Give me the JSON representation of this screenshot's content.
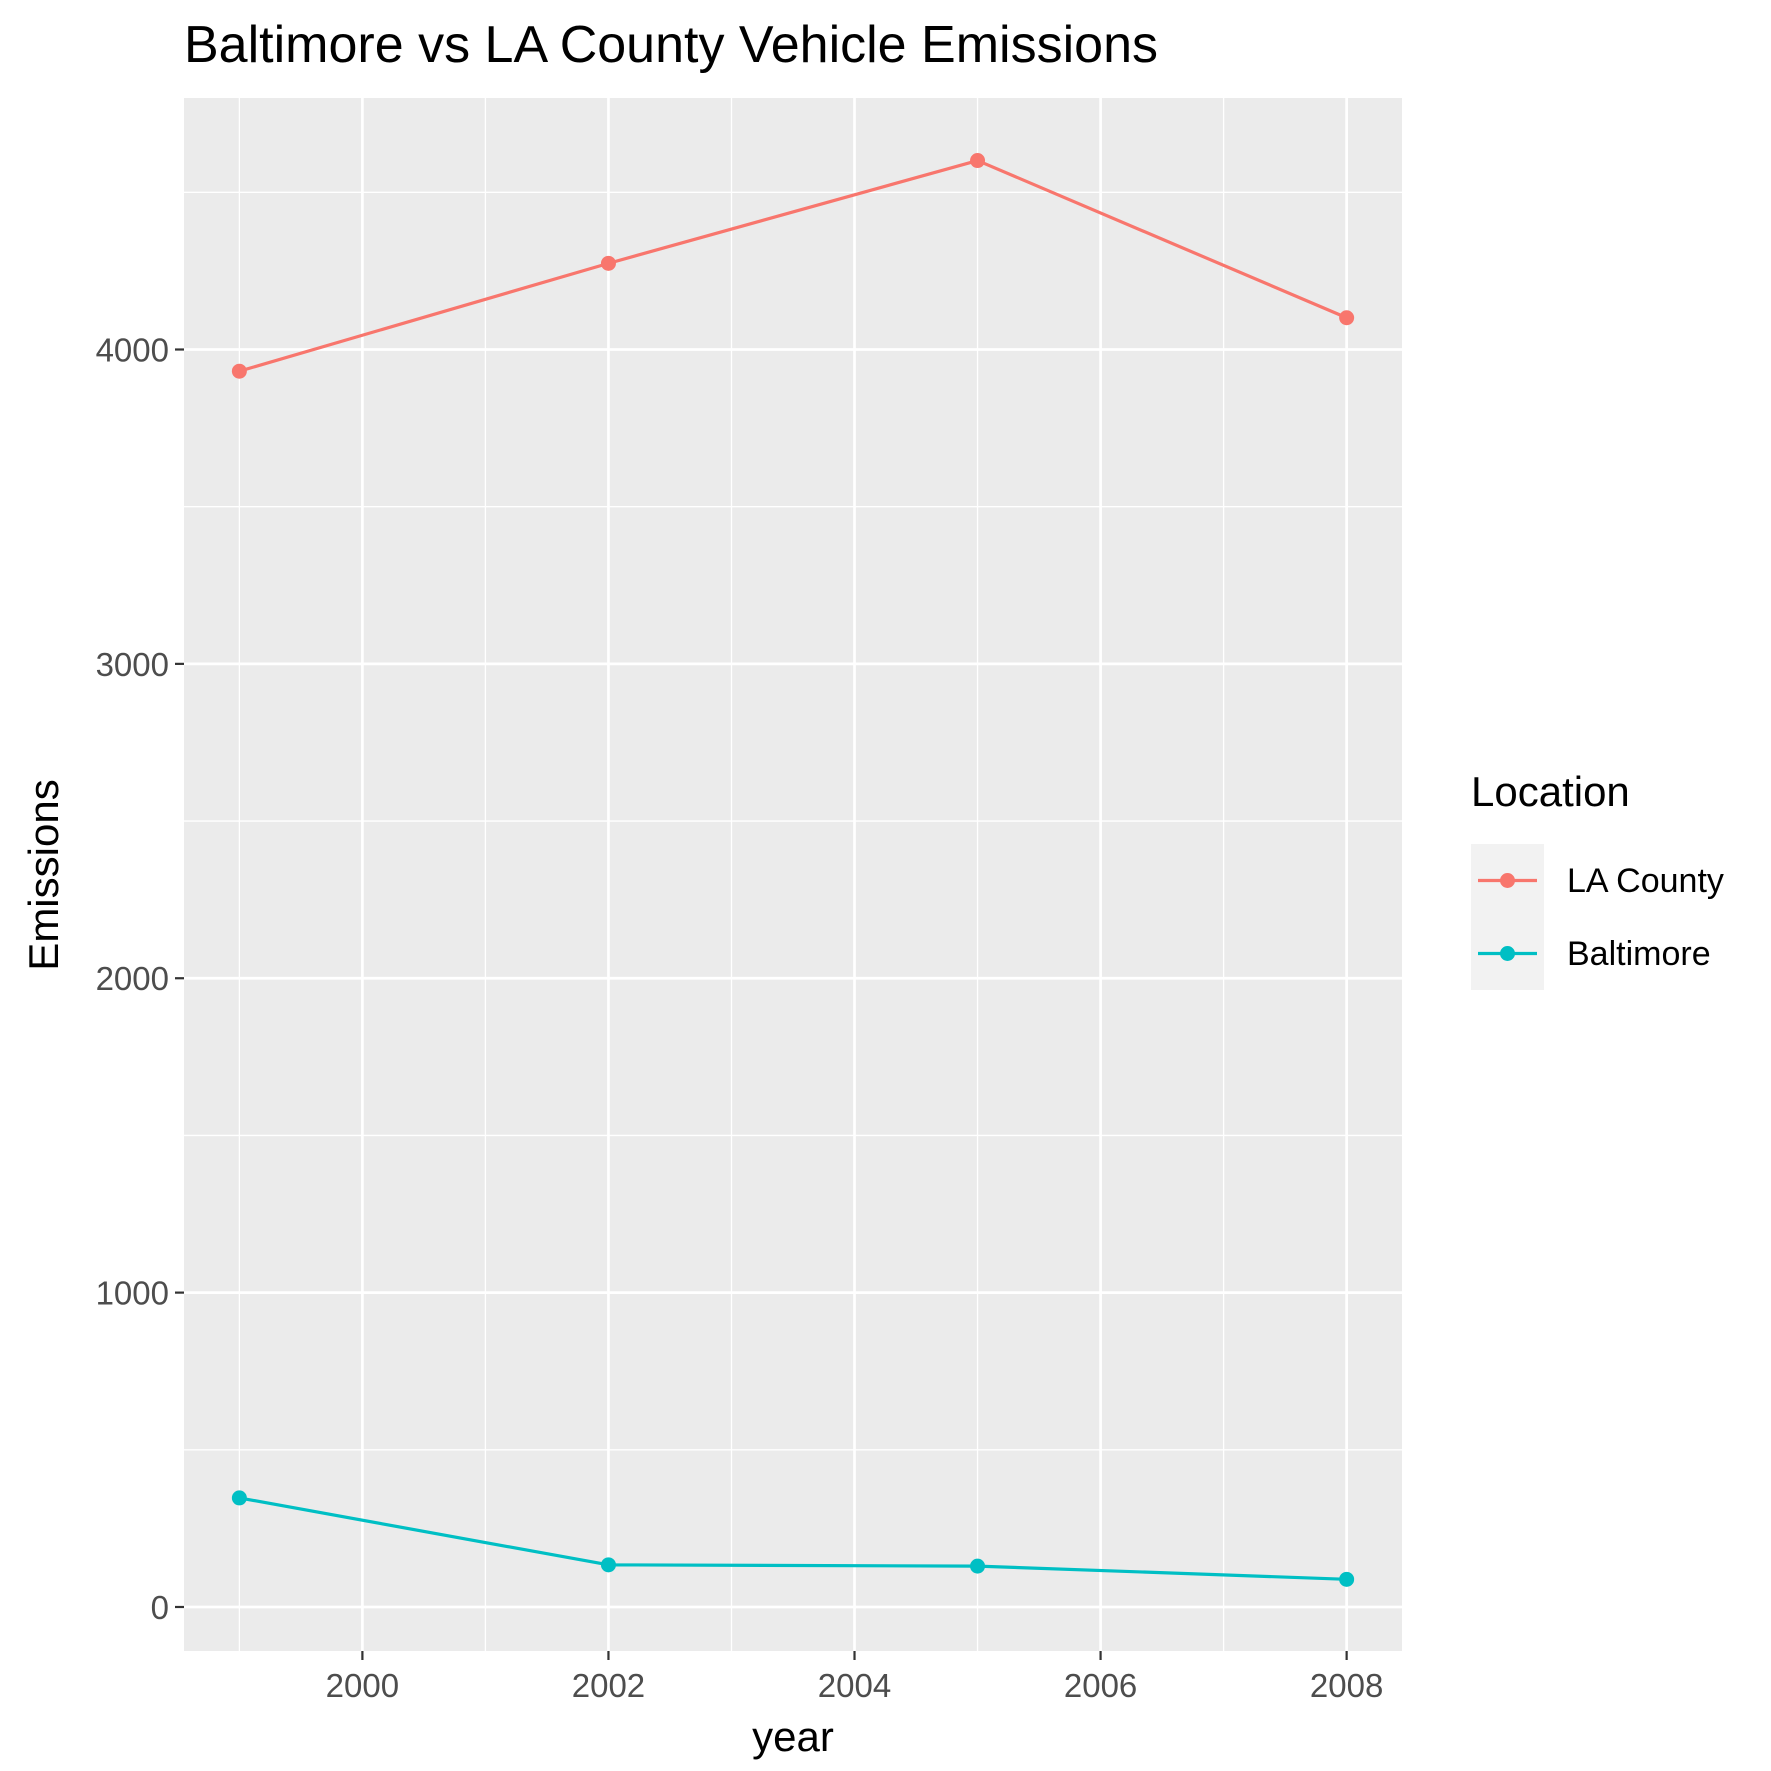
{
  "chart_data": {
    "type": "line",
    "title": "Baltimore vs LA County Vehicle Emissions",
    "xlabel": "year",
    "ylabel": "Emissions",
    "x": [
      1999,
      2002,
      2005,
      2008
    ],
    "xlim": [
      1998.55,
      2008.45
    ],
    "ylim": [
      -140,
      4800
    ],
    "x_ticks": [
      2000,
      2002,
      2004,
      2006,
      2008
    ],
    "x_minor_ticks": [
      1999,
      2001,
      2003,
      2005,
      2007
    ],
    "y_ticks": [
      0,
      1000,
      2000,
      3000,
      4000
    ],
    "y_minor_ticks": [
      500,
      1500,
      2500,
      3500,
      4500
    ],
    "grid": true,
    "legend": {
      "title": "Location",
      "position": "right"
    },
    "series": [
      {
        "name": "LA County",
        "color": "#F8766D",
        "values": [
          3931,
          4274,
          4601,
          4101
        ]
      },
      {
        "name": "Baltimore",
        "color": "#00BFC4",
        "values": [
          347,
          134,
          130,
          88
        ]
      }
    ]
  }
}
